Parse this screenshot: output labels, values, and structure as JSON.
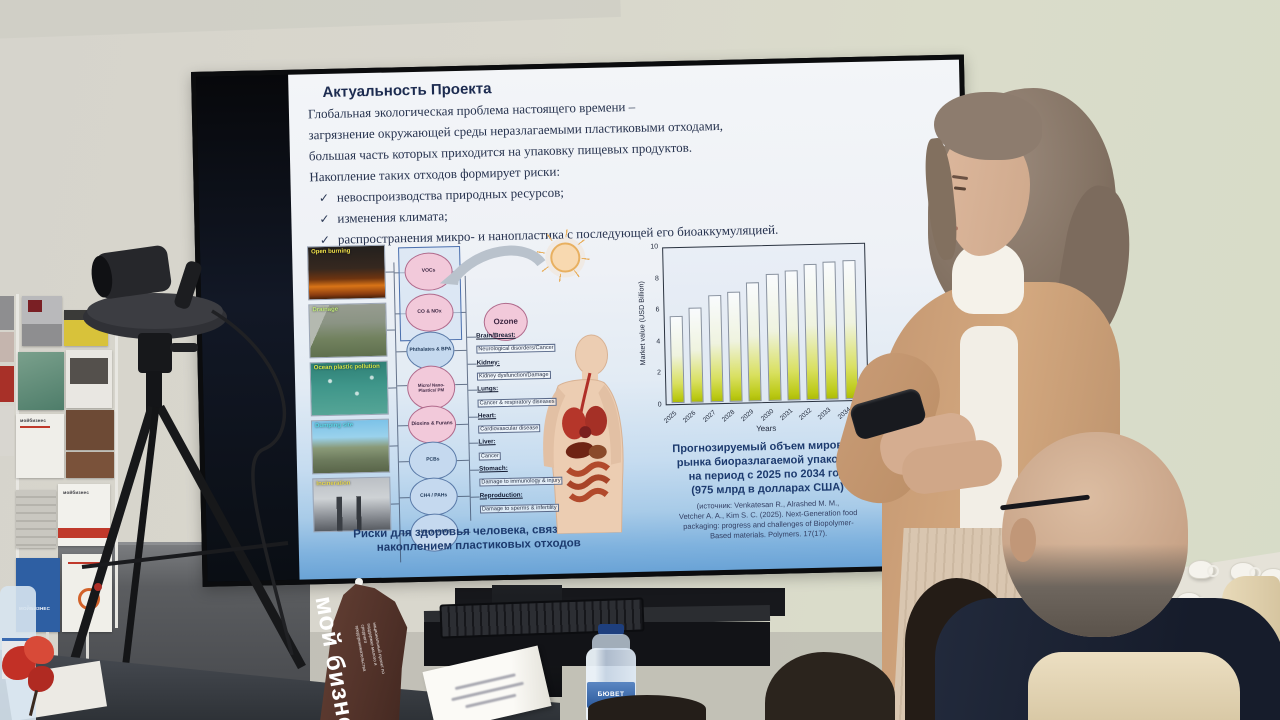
{
  "chart_data": {
    "type": "bar",
    "categories": [
      "2025",
      "2026",
      "2027",
      "2028",
      "2029",
      "2030",
      "2031",
      "2032",
      "2033",
      "2034"
    ],
    "values": [
      5.6,
      6.1,
      6.9,
      7.1,
      7.7,
      8.2,
      8.4,
      8.8,
      8.9,
      9.0
    ],
    "title": "Прогнозируемый объем мирового рынка биоразлагаемой упаковки на период с 2025 по 2034 год (975 млрд в долларах США)",
    "xlabel": "Years",
    "ylabel": "Market value (USD Billion)",
    "ylim": [
      0,
      10
    ],
    "yticks": [
      0,
      2,
      4,
      6,
      8,
      10
    ],
    "grid": false,
    "legend": null,
    "bar_style": "outlined bars with white-to-yellow-green bottom gradient"
  },
  "slide": {
    "title": "Актуальность Проекта",
    "body_lines": [
      "Глобальная экологическая проблема настоящего времени –",
      "загрязнение окружающей среды неразлагаемыми пластиковыми отходами,",
      "большая часть которых приходится на упаковку пищевых продуктов.",
      "Накопление таких отходов формирует риски:"
    ],
    "checkmark": "✓",
    "bullets": [
      "невоспроизводства природных ресурсов;",
      "изменения климата;",
      "распространения микро- и нанопластика с последующей его биоаккумуляцией."
    ],
    "figure": {
      "source_labels": [
        "Open burning",
        "Drainage",
        "Ocean plastic pollution",
        "Dumping site",
        "Incineration"
      ],
      "label_colors": [
        "#f2e24a",
        "#bfe878",
        "#d8e84a",
        "#5ad8e8",
        "#e8d84a"
      ],
      "pollutants": [
        "VOCs",
        "CO & NOx",
        "Phthalates & BPA",
        "Micro/ Nano- Plastics/ PM",
        "Dioxins & Furans",
        "PCBs",
        "CH4 / PAHs",
        "Heavy metals"
      ],
      "pollutant_colors": [
        "pink",
        "pink",
        "blue",
        "pink",
        "pink",
        "blue",
        "blue",
        "blue"
      ],
      "ozone": "Ozone",
      "effects": [
        "Brain/Breast:",
        "Neurological disorders/Cancer",
        "Kidney:",
        "Kidney dysfunction/Damage",
        "Lungs:",
        "Cancer & respiratory diseases",
        "Heart:",
        "Cardiovascular disease",
        "Liver:",
        "Cancer",
        "Stomach:",
        "Damage to immunology & injury",
        "Reproduction:",
        "Damage to sperms & infertility"
      ],
      "caption_lines": [
        "Риски для здоровья человека, связанные с",
        "накоплением пластиковых отходов"
      ]
    },
    "chart_caption_lines": [
      "Прогнозируемый объем мирового",
      "рынка биоразлагаемой упаковки",
      "на период с 2025 по 2034 год",
      "(975 млрд в долларах США)"
    ],
    "chart_source_lines": [
      "(источник: Venkatesan R., Alrashed M. M.,",
      "Vetcher A. A., Kim S. C. (2025). Next-Generation food",
      "packaging: progress and challenges of Biopolymer-",
      "Based materials. Polymers. 17(17)."
    ]
  },
  "room": {
    "flag_word1": "мой",
    "flag_word2": "бизнес",
    "flag_small_text": "национальный проект по поддержке малого и среднего предпринимательства",
    "bottle_label": "БЮВЕТ",
    "brochure_label": "мойбизнес",
    "brochure_label_caps": "МОЙБИЗНЕС"
  },
  "colors": {
    "accent_bar_green": "#aebc08",
    "slide_caption_blue": "#1c3a6e",
    "flag_brown": "#5b3a2e"
  }
}
